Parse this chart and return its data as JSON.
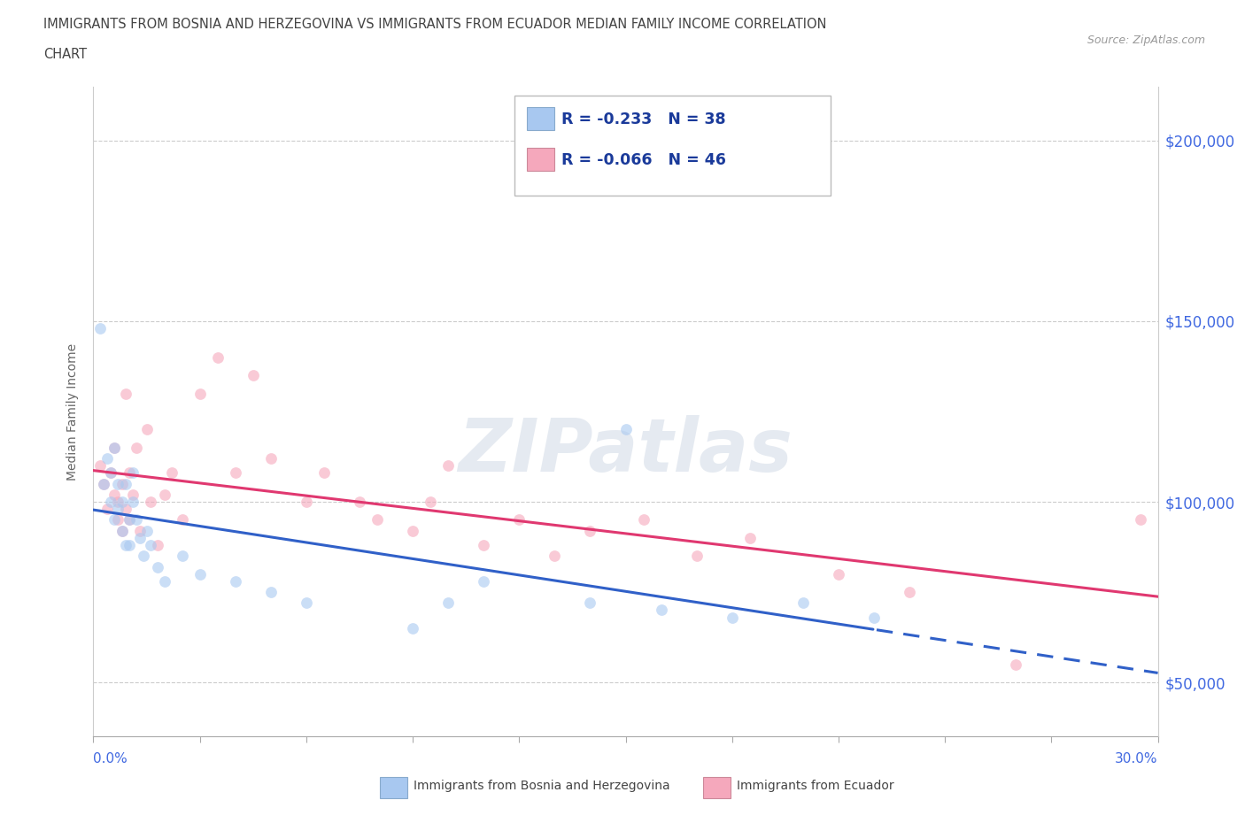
{
  "title_line1": "IMMIGRANTS FROM BOSNIA AND HERZEGOVINA VS IMMIGRANTS FROM ECUADOR MEDIAN FAMILY INCOME CORRELATION",
  "title_line2": "CHART",
  "source": "Source: ZipAtlas.com",
  "ylabel": "Median Family Income",
  "legend1_label": "Immigrants from Bosnia and Herzegovina",
  "legend2_label": "Immigrants from Ecuador",
  "R1": -0.233,
  "N1": 38,
  "R2": -0.066,
  "N2": 46,
  "yticks": [
    50000,
    100000,
    150000,
    200000
  ],
  "ytick_labels": [
    "$50,000",
    "$100,000",
    "$150,000",
    "$200,000"
  ],
  "color1": "#A8C8F0",
  "color2": "#F5A8BC",
  "line1_color": "#3060C8",
  "line2_color": "#E03870",
  "watermark": "ZIPatlas",
  "bosnia_x": [
    0.002,
    0.003,
    0.004,
    0.005,
    0.005,
    0.006,
    0.006,
    0.007,
    0.007,
    0.008,
    0.008,
    0.009,
    0.009,
    0.01,
    0.01,
    0.011,
    0.011,
    0.012,
    0.013,
    0.014,
    0.015,
    0.016,
    0.018,
    0.02,
    0.025,
    0.03,
    0.04,
    0.05,
    0.06,
    0.09,
    0.1,
    0.11,
    0.14,
    0.16,
    0.18,
    0.2,
    0.22,
    0.15
  ],
  "bosnia_y": [
    148000,
    105000,
    112000,
    108000,
    100000,
    95000,
    115000,
    105000,
    98000,
    92000,
    100000,
    88000,
    105000,
    95000,
    88000,
    100000,
    108000,
    95000,
    90000,
    85000,
    92000,
    88000,
    82000,
    78000,
    85000,
    80000,
    78000,
    75000,
    72000,
    65000,
    72000,
    78000,
    72000,
    70000,
    68000,
    72000,
    68000,
    120000
  ],
  "ecuador_x": [
    0.002,
    0.003,
    0.004,
    0.005,
    0.006,
    0.006,
    0.007,
    0.007,
    0.008,
    0.008,
    0.009,
    0.009,
    0.01,
    0.01,
    0.011,
    0.012,
    0.013,
    0.015,
    0.016,
    0.018,
    0.02,
    0.022,
    0.025,
    0.03,
    0.035,
    0.04,
    0.045,
    0.05,
    0.06,
    0.065,
    0.075,
    0.08,
    0.09,
    0.095,
    0.1,
    0.11,
    0.12,
    0.13,
    0.14,
    0.155,
    0.17,
    0.185,
    0.21,
    0.23,
    0.26,
    0.295
  ],
  "ecuador_y": [
    110000,
    105000,
    98000,
    108000,
    102000,
    115000,
    95000,
    100000,
    92000,
    105000,
    98000,
    130000,
    108000,
    95000,
    102000,
    115000,
    92000,
    120000,
    100000,
    88000,
    102000,
    108000,
    95000,
    130000,
    140000,
    108000,
    135000,
    112000,
    100000,
    108000,
    100000,
    95000,
    92000,
    100000,
    110000,
    88000,
    95000,
    85000,
    92000,
    95000,
    85000,
    90000,
    80000,
    75000,
    55000,
    95000
  ],
  "xlim": [
    0.0,
    0.3
  ],
  "ylim": [
    35000,
    215000
  ],
  "bg_color": "#FFFFFF",
  "dot_size": 85,
  "dot_alpha": 0.6,
  "line_dash_start": 0.22
}
